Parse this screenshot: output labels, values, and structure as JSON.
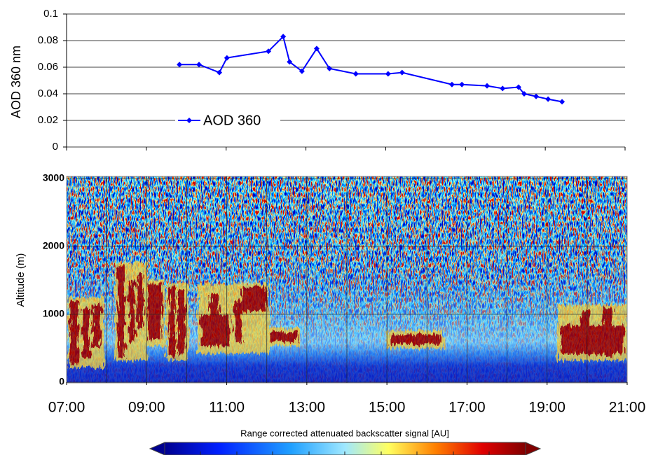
{
  "chart_data": [
    {
      "type": "line",
      "ylabel": "AOD 360 nm",
      "xlim": [
        7,
        21
      ],
      "ylim": [
        0,
        0.1
      ],
      "yticks": [
        0,
        0.02,
        0.04,
        0.06,
        0.08,
        0.1
      ],
      "grid": true,
      "legend": "lower left",
      "series": [
        {
          "name": "AOD 360",
          "color": "#0000ff",
          "x": [
            9.83,
            10.32,
            10.83,
            11.02,
            12.06,
            12.43,
            12.59,
            12.9,
            13.27,
            13.59,
            14.25,
            15.06,
            15.41,
            16.66,
            16.91,
            17.54,
            17.93,
            18.33,
            18.47,
            18.77,
            19.07,
            19.42
          ],
          "values": [
            0.062,
            0.062,
            0.056,
            0.067,
            0.072,
            0.083,
            0.064,
            0.057,
            0.074,
            0.059,
            0.055,
            0.055,
            0.056,
            0.047,
            0.047,
            0.046,
            0.044,
            0.045,
            0.04,
            0.038,
            0.036,
            0.034
          ]
        }
      ]
    },
    {
      "type": "heatmap",
      "ylabel": "Altitude (m)",
      "xlim": [
        7,
        21
      ],
      "xticks": [
        {
          "value": 7,
          "label": "07:00"
        },
        {
          "value": 9,
          "label": "09:00"
        },
        {
          "value": 11,
          "label": "11:00"
        },
        {
          "value": 13,
          "label": "13:00"
        },
        {
          "value": 15,
          "label": "15:00"
        },
        {
          "value": 17,
          "label": "17:00"
        },
        {
          "value": 19,
          "label": "19:00"
        },
        {
          "value": 21,
          "label": "21:00"
        }
      ],
      "ylim": [
        0,
        3000
      ],
      "yticks": [
        0,
        1000,
        2000,
        3000
      ],
      "grid": true,
      "colorbar_label": "Range corrected attenuated backscatter signal [AU]"
    }
  ]
}
